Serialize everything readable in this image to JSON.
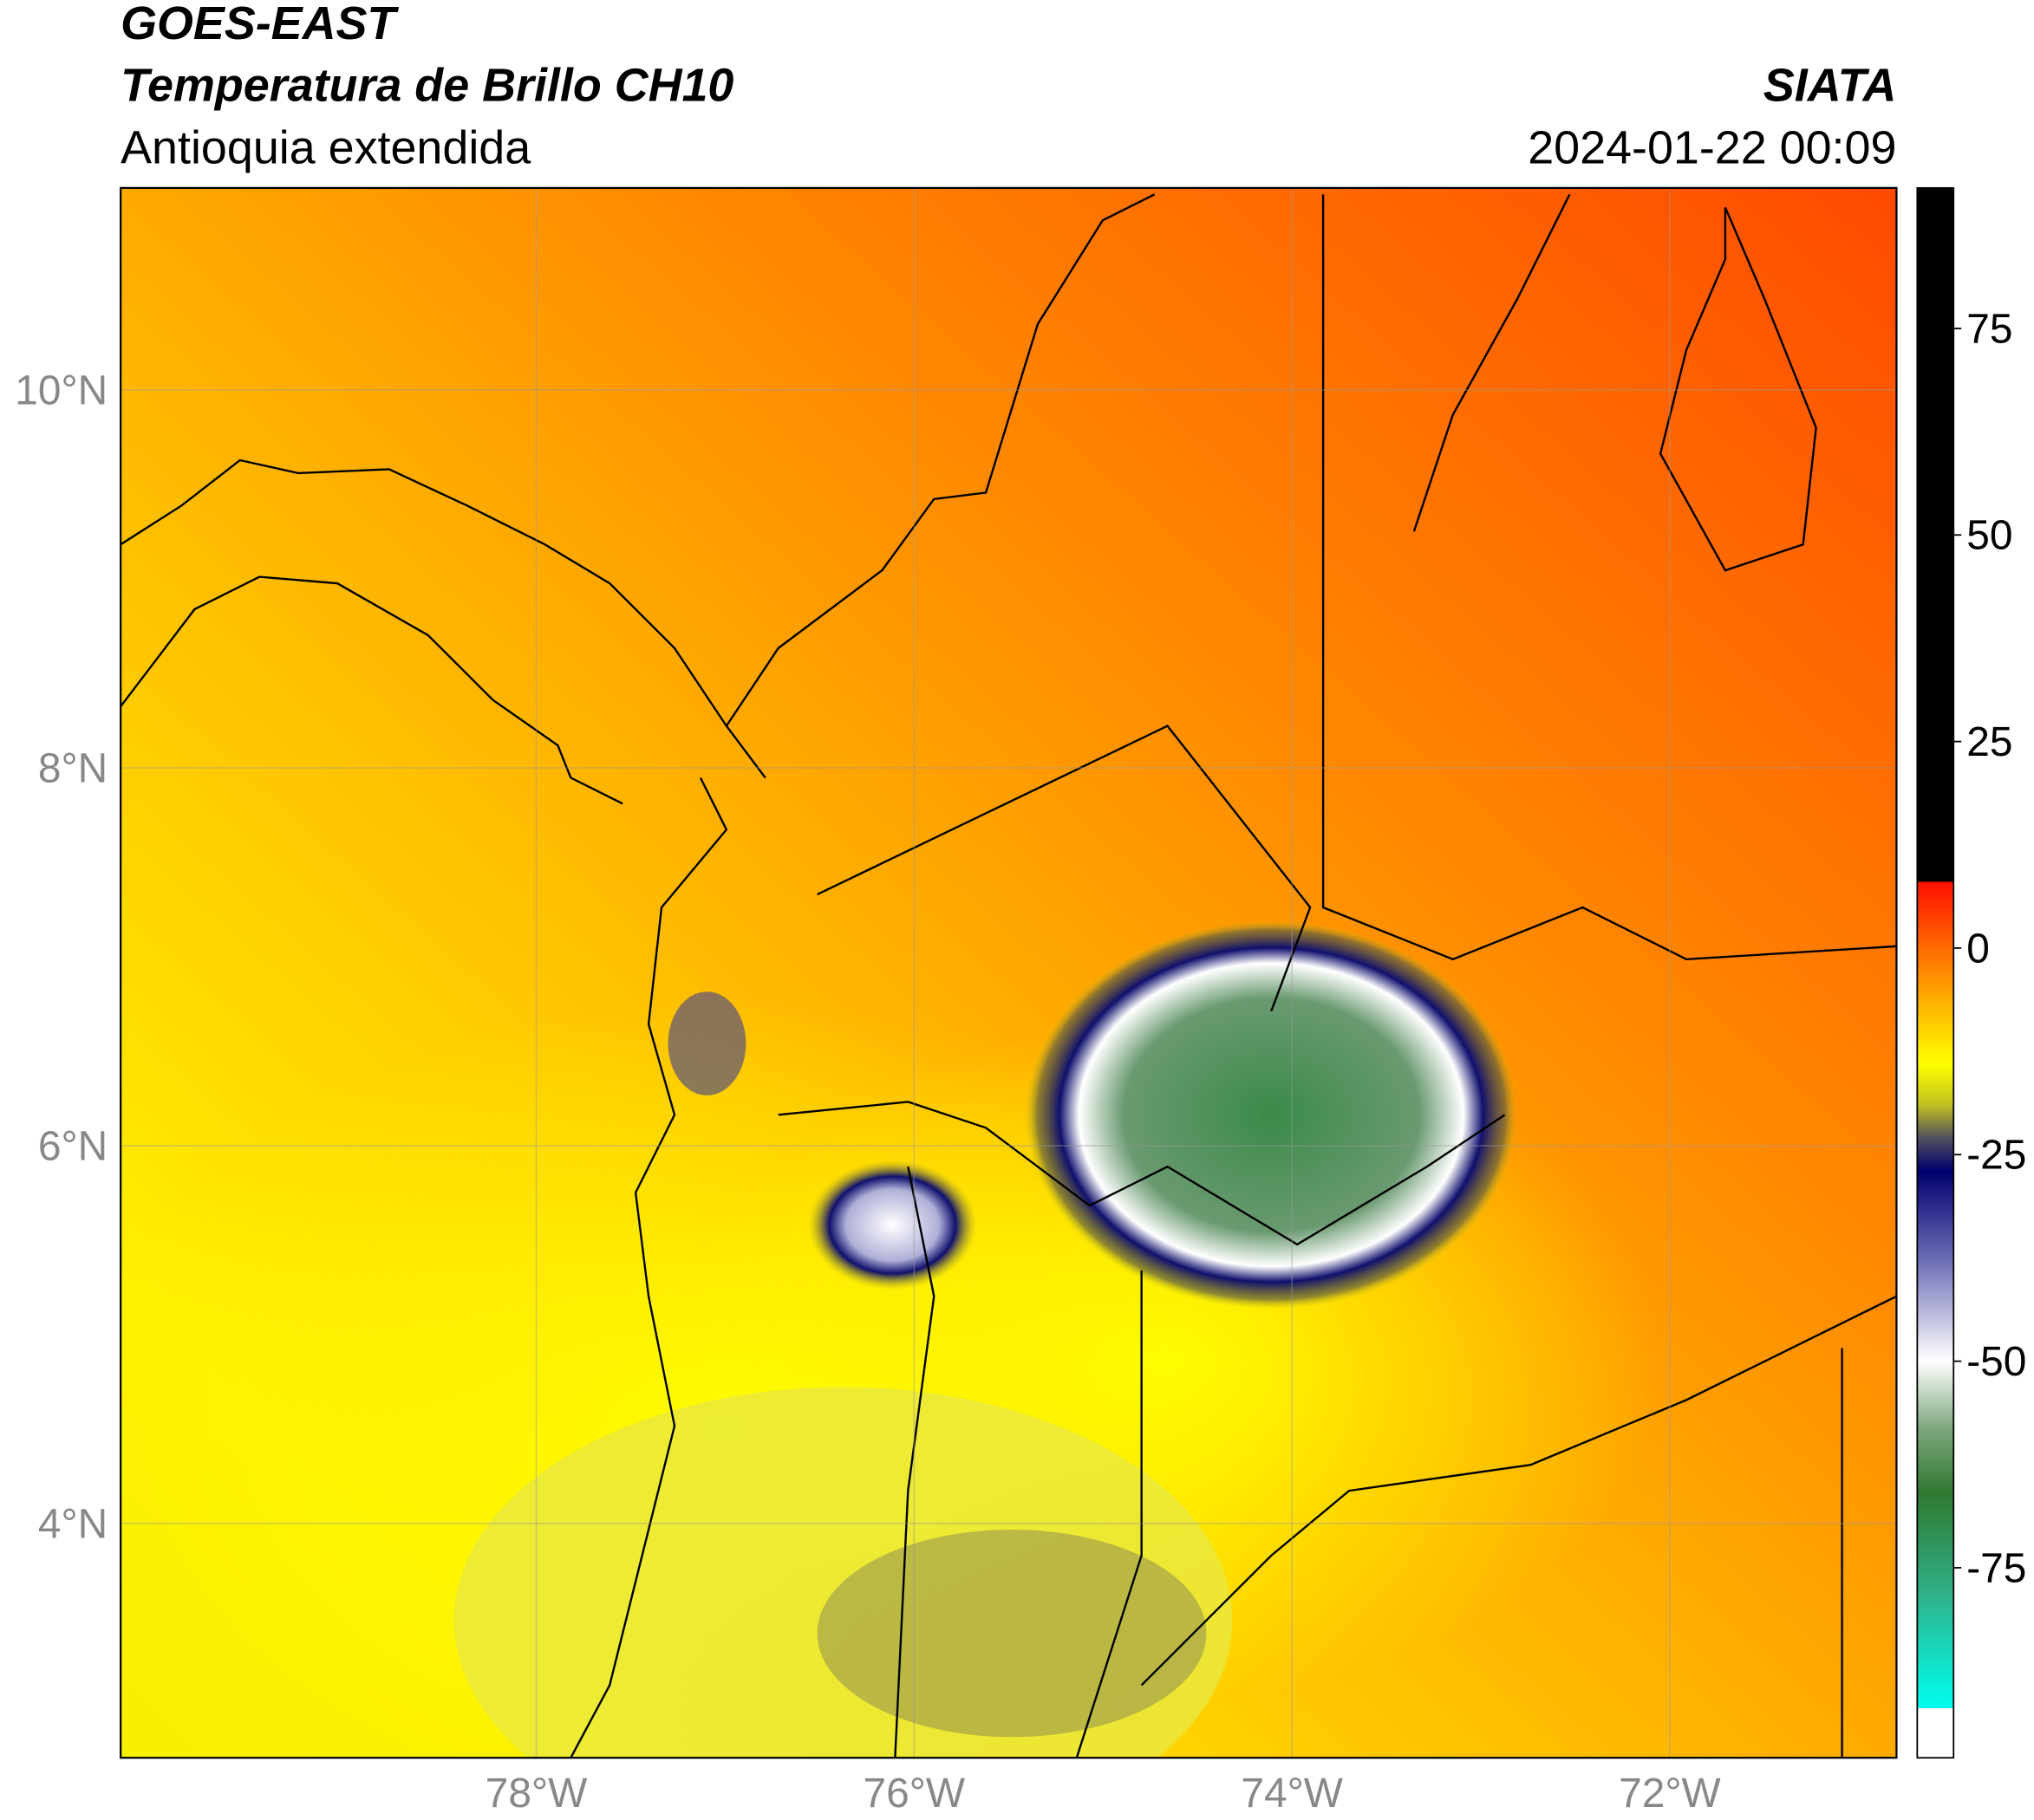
{
  "header": {
    "title": "GOES-EAST",
    "subtitle": "Temperatura de Brillo CH10",
    "region": "Antioquia extendida",
    "source": "SIATA",
    "datetime": "2024-01-22 00:09"
  },
  "map": {
    "type": "map",
    "xlim": [
      -80.2,
      -70.8
    ],
    "ylim": [
      2.76,
      11.07
    ],
    "xticks": [
      {
        "value": -78,
        "label": "78°W"
      },
      {
        "value": -76,
        "label": "76°W"
      },
      {
        "value": -74,
        "label": "74°W"
      },
      {
        "value": -72,
        "label": "72°W"
      }
    ],
    "yticks": [
      {
        "value": 4,
        "label": "4°N"
      },
      {
        "value": 6,
        "label": "6°N"
      },
      {
        "value": 8,
        "label": "8°N"
      },
      {
        "value": 10,
        "label": "10°N"
      }
    ],
    "grid": true
  },
  "colorbar": {
    "lim": [
      -98,
      92
    ],
    "ticks": [
      -75,
      -50,
      -25,
      0,
      25,
      50,
      75
    ],
    "colormap": [
      {
        "value": 92,
        "color": "#000000"
      },
      {
        "value": 8,
        "color": "#000000"
      },
      {
        "value": 8,
        "color": "#ff1000"
      },
      {
        "value": 0,
        "color": "#ff6a00"
      },
      {
        "value": -8,
        "color": "#ffc000"
      },
      {
        "value": -14,
        "color": "#ffff00"
      },
      {
        "value": -19,
        "color": "#c0c020"
      },
      {
        "value": -23,
        "color": "#505060"
      },
      {
        "value": -27,
        "color": "#00006e"
      },
      {
        "value": -38,
        "color": "#7070b8"
      },
      {
        "value": -50,
        "color": "#ffffff"
      },
      {
        "value": -58,
        "color": "#80a880"
      },
      {
        "value": -66,
        "color": "#307830"
      },
      {
        "value": -78,
        "color": "#30b088"
      },
      {
        "value": -92,
        "color": "#00ffee"
      },
      {
        "value": -92,
        "color": "#ffffff"
      },
      {
        "value": -98,
        "color": "#ffffff"
      }
    ]
  }
}
